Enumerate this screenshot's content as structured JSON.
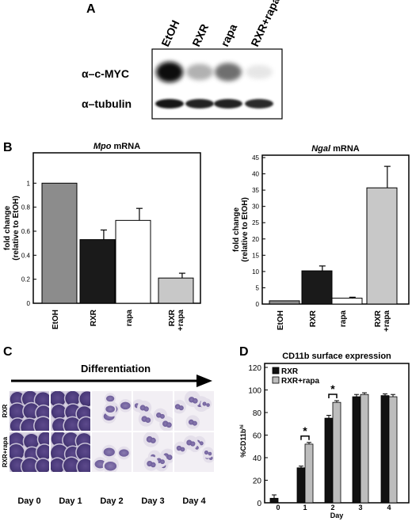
{
  "panel_a": {
    "letter": "A",
    "lanes": [
      "EtOH",
      "RXR",
      "rapa",
      "RXR+rapa"
    ],
    "row_labels": [
      "α–c-MYC",
      "α–tubulin"
    ],
    "cmyc_intensity": [
      1.0,
      0.45,
      0.7,
      0.15
    ],
    "tubulin_intensity": [
      0.95,
      0.9,
      0.9,
      0.85
    ]
  },
  "panel_b_letter": "B",
  "panel_c": {
    "letter": "C",
    "arrow_label": "Differentiation",
    "rows": [
      "RXR",
      "RXR+rapa"
    ],
    "days": [
      "Day 0",
      "Day 1",
      "Day 2",
      "Day 3",
      "Day 4"
    ]
  },
  "panel_d_letter": "D",
  "chart_data": [
    {
      "type": "bar",
      "title_italic": "Mpo",
      "title_rest": " mRNA",
      "ylabel": "fold change",
      "ylabel2": "(relative to EtOH)",
      "categories": [
        "EtOH",
        "RXR",
        "rapa",
        "RXR\n+rapa"
      ],
      "values": [
        1.0,
        0.53,
        0.69,
        0.21
      ],
      "errors": [
        0.0,
        0.08,
        0.1,
        0.04
      ],
      "colors": [
        "#8c8c8c",
        "#1a1a1a",
        "#ffffff",
        "#c8c8c8"
      ],
      "ylim": [
        0,
        1.2
      ],
      "yticks": [
        "0",
        "0.2",
        "0.4",
        "0.6",
        "0.8",
        "1"
      ],
      "ytick_values": [
        0,
        0.2,
        0.4,
        0.6,
        0.8,
        1
      ]
    },
    {
      "type": "bar",
      "title_italic": "Ngal",
      "title_rest": " mRNA",
      "ylabel": "fold change",
      "ylabel2": "(relative to EtOH)",
      "categories": [
        "EtOH",
        "RXR",
        "rapa",
        "RXR\n+rapa"
      ],
      "values": [
        1,
        10.2,
        1.8,
        35.7
      ],
      "errors": [
        0,
        1.5,
        0.3,
        6.6
      ],
      "colors": [
        "#8c8c8c",
        "#1a1a1a",
        "#ffffff",
        "#c8c8c8"
      ],
      "ylim": [
        0,
        45
      ],
      "yticks": [
        "0",
        "5",
        "10",
        "15",
        "20",
        "25",
        "30",
        "35",
        "40",
        "45"
      ],
      "ytick_values": [
        0,
        5,
        10,
        15,
        20,
        25,
        30,
        35,
        40,
        45
      ]
    },
    {
      "type": "bar",
      "title": "CD11b surface expression",
      "xlabel": "Day",
      "ylabel": "%CD11b",
      "ylabel_sup": "hi",
      "categories": [
        "0",
        "1",
        "2",
        "3",
        "4"
      ],
      "series": [
        {
          "name": "RXR",
          "color": "#111111",
          "values": [
            4,
            31,
            75,
            94,
            95
          ],
          "errors": [
            3,
            1.5,
            2.5,
            2,
            1.5
          ]
        },
        {
          "name": "RXR+rapa",
          "color": "#bdbdbd",
          "values": [
            null,
            52,
            89,
            96,
            94
          ],
          "errors": [
            0,
            1.5,
            1.5,
            1.5,
            2
          ]
        }
      ],
      "significance": [
        {
          "category_index": 1,
          "label": "*"
        },
        {
          "category_index": 2,
          "label": "*"
        }
      ],
      "ylim": [
        0,
        120
      ],
      "yticks": [
        "0",
        "20",
        "40",
        "60",
        "80",
        "100",
        "120"
      ],
      "ytick_values": [
        0,
        20,
        40,
        60,
        80,
        100,
        120
      ],
      "legend": "top-left"
    }
  ]
}
